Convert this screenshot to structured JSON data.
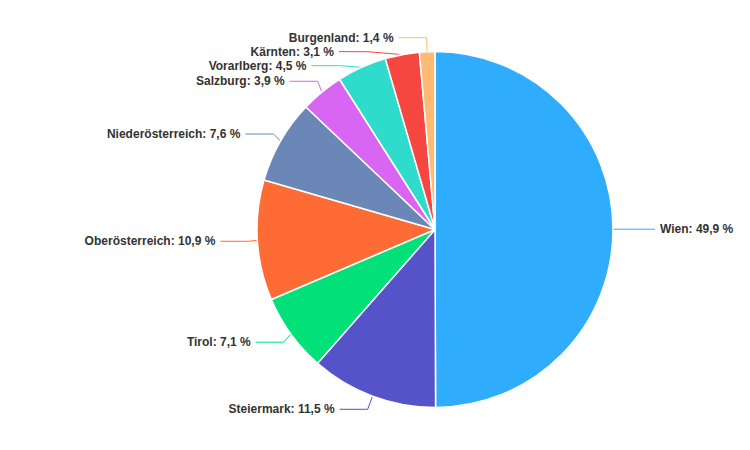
{
  "chart_data": {
    "type": "pie",
    "categories": [
      "Wien",
      "Steiermark",
      "Tirol",
      "Oberösterreich",
      "Niederösterreich",
      "Salzburg",
      "Vorarlberg",
      "Kärnten",
      "Burgenland"
    ],
    "values": [
      49.9,
      11.5,
      7.1,
      10.9,
      7.6,
      3.9,
      4.5,
      3.1,
      1.4
    ],
    "value_labels": [
      "Wien: 49,9 %",
      "Steiermark: 11,5 %",
      "Tirol: 7,1 %",
      "Oberösterreich: 10,9 %",
      "Niederösterreich: 7,6 %",
      "Salzburg: 3,9 %",
      "Vorarlberg: 4,5 %",
      "Kärnten: 3,1 %",
      "Burgenland: 1,4 %"
    ],
    "colors": [
      "#2fadfc",
      "#5652c8",
      "#02e07a",
      "#ff6b35",
      "#6a87b8",
      "#d966f2",
      "#2fdccb",
      "#f5473f",
      "#ffbb74"
    ],
    "data_labels": true,
    "legend": false
  }
}
